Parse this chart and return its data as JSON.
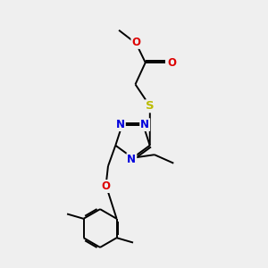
{
  "bg_color": "#efefef",
  "bond_color": "#000000",
  "bond_lw": 1.4,
  "N_color": "#0000dd",
  "O_color": "#dd0000",
  "S_color": "#bbbb00",
  "font_size": 8.5,
  "fig_w": 3.0,
  "fig_h": 3.0,
  "dpi": 100,
  "xlim": [
    0,
    10
  ],
  "ylim": [
    0,
    10
  ]
}
